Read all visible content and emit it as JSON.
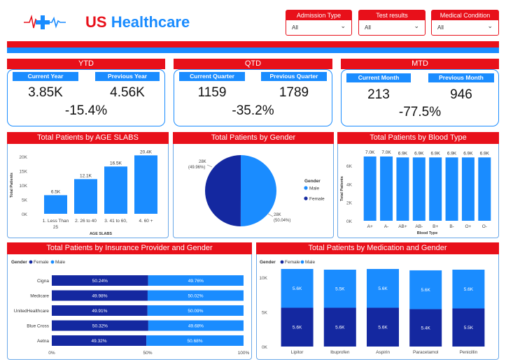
{
  "header": {
    "title_us": "US",
    "title_rest": "Healthcare",
    "slicers": [
      {
        "label": "Admission Type",
        "value": "All"
      },
      {
        "label": "Test results",
        "value": "All"
      },
      {
        "label": "Medical Condition",
        "value": "All"
      }
    ]
  },
  "kpis": {
    "ytd": {
      "title": "YTD",
      "current_label": "Current Year",
      "previous_label": "Previous Year",
      "current": "3.85K",
      "previous": "4.56K",
      "change": "-15.4%"
    },
    "qtd": {
      "title": "QTD",
      "current_label": "Current Quarter",
      "previous_label": "Previous Quarter",
      "current": "1159",
      "previous": "1789",
      "change": "-35.2%"
    },
    "mtd": {
      "title": "MTD",
      "current_label": "Current Month",
      "previous_label": "Previous Month",
      "current": "213",
      "previous": "946",
      "change": "-77.5%"
    }
  },
  "colors": {
    "red": "#e8101a",
    "blue": "#1a8cff",
    "navy": "#1428a0"
  },
  "chart_data": [
    {
      "type": "bar",
      "title": "Total Patients by AGE SLABS",
      "categories": [
        "1. Less Than 25",
        "2. 26 to 40",
        "3. 41 to 60,",
        "4. 60 +"
      ],
      "category_lines": [
        [
          "1. Less Than",
          "25"
        ],
        [
          "2. 26 to 40"
        ],
        [
          "3. 41 to 60,"
        ],
        [
          "4. 60 +"
        ]
      ],
      "values": [
        6500,
        12100,
        16500,
        20400
      ],
      "labels": [
        "6.5K",
        "12.1K",
        "16.5K",
        "20.4K"
      ],
      "ylim": [
        0,
        20000
      ],
      "yticks": [
        0,
        5000,
        10000,
        15000,
        20000
      ],
      "ytick_labels": [
        "0K",
        "5K",
        "10K",
        "15K",
        "20K"
      ],
      "xlabel": "AGE SLABS",
      "ylabel": "Total Patients"
    },
    {
      "type": "pie",
      "title": "Total Patients by Gender",
      "categories": [
        "Male",
        "Female"
      ],
      "values": [
        50.04,
        49.96
      ],
      "slice_labels": [
        [
          "28K",
          "(50.04%)"
        ],
        [
          "28K",
          "(49.96%)"
        ]
      ],
      "legend_title": "Gender",
      "legend": "right"
    },
    {
      "type": "bar",
      "title": "Total Patients by Blood Type",
      "categories": [
        "A+",
        "A-",
        "AB+",
        "AB-",
        "B+",
        "B-",
        "O+",
        "O-"
      ],
      "values": [
        7000,
        7000,
        6900,
        6900,
        6900,
        6900,
        6900,
        6900
      ],
      "labels": [
        "7.0K",
        "7.0K",
        "6.9K",
        "6.9K",
        "6.9K",
        "6.9K",
        "6.9K",
        "6.9K"
      ],
      "ylim": [
        0,
        7000
      ],
      "yticks": [
        0,
        2000,
        4000,
        6000
      ],
      "ytick_labels": [
        "0K",
        "2K",
        "4K",
        "6K"
      ],
      "xlabel": "Blood Type",
      "ylabel": "Total Patients"
    },
    {
      "type": "bar",
      "stacked": "100%",
      "orientation": "horizontal",
      "title": "Total Patients by Insurance Provider and Gender",
      "legend_title": "Gender",
      "categories": [
        "Cigna",
        "Medicare",
        "UnitedHealthcare",
        "Blue Cross",
        "Aetna"
      ],
      "series": [
        {
          "name": "Female",
          "values": [
            50.24,
            49.98,
            49.91,
            50.32,
            49.32
          ],
          "labels": [
            "50.24%",
            "49.98%",
            "49.91%",
            "50.32%",
            "49.32%"
          ]
        },
        {
          "name": "Male",
          "values": [
            49.76,
            50.02,
            50.09,
            49.68,
            50.68
          ],
          "labels": [
            "49.76%",
            "50.02%",
            "50.09%",
            "49.68%",
            "50.68%"
          ]
        }
      ],
      "xticks": [
        0,
        50,
        100
      ],
      "xtick_labels": [
        "0%",
        "50%",
        "100%"
      ],
      "legend": "top-left"
    },
    {
      "type": "bar",
      "stacked": true,
      "title": "Total Patients by Medication and Gender",
      "legend_title": "Gender",
      "categories": [
        "Lipitor",
        "Ibuprofen",
        "Aspirin",
        "Paracetamol",
        "Penicillin"
      ],
      "series": [
        {
          "name": "Female",
          "values": [
            5600,
            5600,
            5600,
            5400,
            5500
          ],
          "labels": [
            "5.6K",
            "5.6K",
            "5.6K",
            "5.4K",
            "5.5K"
          ]
        },
        {
          "name": "Male",
          "values": [
            5600,
            5500,
            5600,
            5600,
            5600
          ],
          "labels": [
            "5.6K",
            "5.5K",
            "5.6K",
            "5.6K",
            "5.6K"
          ]
        }
      ],
      "ylim": [
        0,
        11500
      ],
      "yticks": [
        0,
        5000,
        10000
      ],
      "ytick_labels": [
        "0K",
        "5K",
        "10K"
      ],
      "legend": "top-left"
    }
  ]
}
